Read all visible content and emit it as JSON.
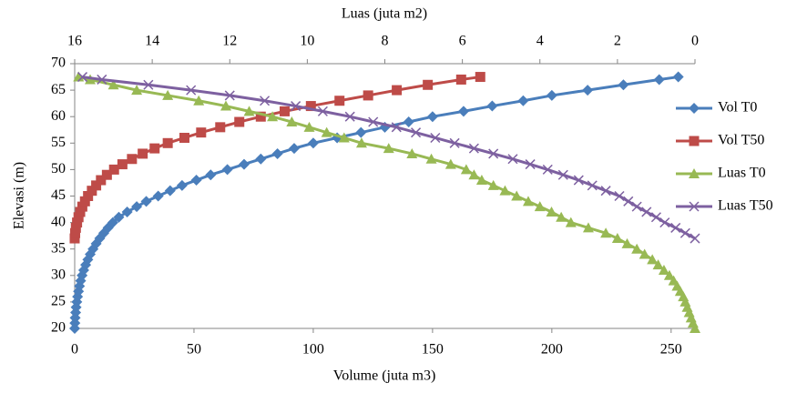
{
  "chart_data": {
    "type": "line",
    "xlabel": "Volume (juta m3)",
    "x2label": "Luas (juta m2)",
    "ylabel": "Elevasi (m)",
    "xlim": [
      0,
      260
    ],
    "xticks": [
      0,
      50,
      100,
      150,
      200,
      250
    ],
    "x2lim": [
      16,
      0
    ],
    "x2ticks": [
      16,
      14,
      12,
      10,
      8,
      6,
      4,
      2,
      0
    ],
    "ylim": [
      20,
      70
    ],
    "yticks": [
      20,
      25,
      30,
      35,
      40,
      45,
      50,
      55,
      60,
      65,
      70
    ],
    "grid": false,
    "legend": "right",
    "series": [
      {
        "name": "Vol T0",
        "color": "#4a7ebb",
        "marker": "diamond",
        "x": [
          0,
          0.1,
          0.2,
          0.4,
          0.6,
          0.9,
          1.2,
          1.6,
          2,
          2.5,
          3.1,
          3.8,
          4.6,
          5.5,
          6.5,
          7.7,
          9,
          10.5,
          12.2,
          14,
          16,
          18.5,
          22,
          26,
          30,
          35,
          40,
          45,
          51,
          57,
          64,
          71,
          78,
          85,
          92,
          100,
          110,
          120,
          130,
          140,
          150,
          163,
          175,
          188,
          200,
          215,
          230,
          245,
          253
        ],
        "values": [
          20,
          21,
          22,
          23,
          24,
          25,
          26,
          27,
          28,
          29,
          30,
          31,
          32,
          33,
          34,
          35,
          36,
          37,
          38,
          39,
          40,
          41,
          42,
          43,
          44,
          45,
          46,
          47,
          48,
          49,
          50,
          51,
          52,
          53,
          54,
          55,
          56,
          57,
          58,
          59,
          60,
          61,
          62,
          63,
          64,
          65,
          66,
          67,
          67.5
        ]
      },
      {
        "name": "Vol T50",
        "color": "#be4b48",
        "marker": "square",
        "x": [
          0,
          0.2,
          0.5,
          1,
          1.6,
          2.3,
          3.2,
          4.3,
          5.6,
          7.2,
          9,
          11,
          13.5,
          16.5,
          20,
          24,
          28.5,
          33.5,
          39,
          46,
          53,
          61,
          69,
          78,
          88,
          99,
          111,
          123,
          135,
          148,
          162,
          170
        ],
        "values": [
          37,
          38,
          39,
          40,
          41,
          42,
          43,
          44,
          45,
          46,
          47,
          48,
          49,
          50,
          51,
          52,
          53,
          54,
          55,
          56,
          57,
          58,
          59,
          60,
          61,
          62,
          63,
          64,
          65,
          66,
          67,
          67.5
        ]
      },
      {
        "name": "Luas T0",
        "color": "#98b954",
        "marker": "triangle",
        "axis": "x2",
        "x": [
          0,
          0.05,
          0.1,
          0.15,
          0.2,
          0.25,
          0.3,
          0.38,
          0.46,
          0.55,
          0.66,
          0.8,
          0.95,
          1.1,
          1.3,
          1.5,
          1.75,
          2.0,
          2.3,
          2.75,
          3.2,
          3.45,
          3.7,
          4.0,
          4.3,
          4.6,
          4.9,
          5.2,
          5.5,
          5.7,
          5.9,
          6.3,
          6.8,
          7.3,
          7.9,
          8.6,
          9.05,
          9.5,
          9.95,
          10.4,
          10.9,
          11.5,
          12.1,
          12.8,
          13.6,
          14.4,
          15.0,
          15.6,
          15.9
        ],
        "values": [
          20,
          21,
          22,
          23,
          24,
          25,
          26,
          27,
          28,
          29,
          30,
          31,
          32,
          33,
          34,
          35,
          36,
          37,
          38,
          39,
          40,
          41,
          42,
          43,
          44,
          45,
          46,
          47,
          48,
          49,
          50,
          51,
          52,
          53,
          54,
          55,
          56,
          57,
          58,
          59,
          60,
          61,
          62,
          63,
          64,
          65,
          66,
          67,
          67.5
        ]
      },
      {
        "name": "Luas T50",
        "color": "#7d60a0",
        "marker": "x",
        "axis": "x2",
        "x": [
          0,
          0.25,
          0.5,
          0.78,
          1.0,
          1.25,
          1.5,
          1.72,
          1.95,
          2.3,
          2.65,
          3.0,
          3.4,
          3.8,
          4.25,
          4.7,
          5.2,
          5.7,
          6.2,
          6.7,
          7.2,
          7.7,
          8.3,
          8.9,
          9.6,
          10.3,
          11.1,
          12.0,
          13.0,
          14.1,
          15.3,
          15.8
        ],
        "values": [
          37,
          38,
          39,
          40,
          41,
          42,
          43,
          44,
          45,
          46,
          47,
          48,
          49,
          50,
          51,
          52,
          53,
          54,
          55,
          56,
          57,
          58,
          59,
          60,
          61,
          62,
          63,
          64,
          65,
          66,
          67,
          67.5
        ]
      }
    ]
  }
}
